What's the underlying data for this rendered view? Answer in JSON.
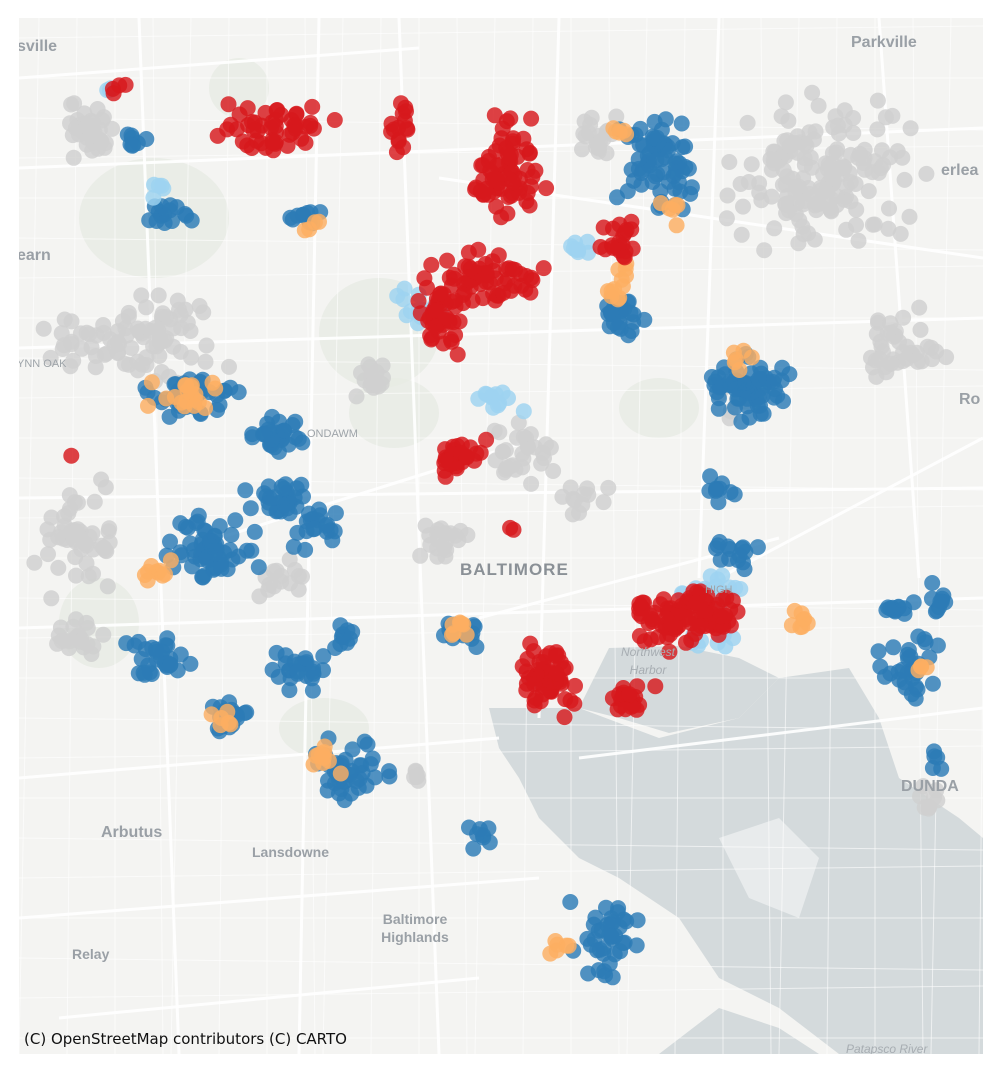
{
  "map": {
    "attribution": "(C) OpenStreetMap contributors (C) CARTO",
    "place_labels": {
      "parkville": "Parkville",
      "sville": "sville",
      "earn": "earn",
      "ynn_oak": "YNN OAK",
      "ondawm": "ONDAWM",
      "baltimore": "BALTIMORE",
      "high": "HIGH",
      "northwest_harbor": "Northwest Harbor",
      "erlea": "erlea",
      "ro": "Ro",
      "arbutus": "Arbutus",
      "lansdowne": "Lansdowne",
      "baltimore_highlands": "Baltimore Highlands",
      "relay": "Relay",
      "dunda": "DUNDA",
      "patapsco_river": "Patapsco River"
    },
    "point_colors": {
      "red": "#d7191c",
      "blue": "#2c7bb6",
      "orange": "#fdae61",
      "light_blue": "#9dd3f0",
      "gray": "#cfcfcf"
    },
    "basemap_colors": {
      "land": "#f4f4f2",
      "water": "#d4dadc",
      "road": "#ffffff",
      "park": "#e7ebe4"
    }
  }
}
